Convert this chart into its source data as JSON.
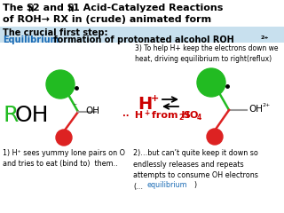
{
  "bg_color": "#ffffff",
  "subtitle_bg": "#c8e0ee",
  "title1_parts": [
    "The S",
    "N",
    "2 and S",
    "N",
    "1 Acid-Catalyzed Reactions"
  ],
  "title2": "of ROH→ RX in (crude) animated form",
  "sub_bold": "The crucial first step:",
  "sub_blue": "Equilibrium",
  "sub_rest": " formation of protonated alcohol ROH",
  "sub_sup": "2+",
  "note3": "3) To help H+ keep the electrons down we\nheat, driving equilibrium to right(reflux)",
  "note1": "1) H⁺ sees yummy lone pairs on O\nand tries to eat (bind to)  them..",
  "note2a": "2)…but can’t quite keep it down so\nendlessly releases and repeats\nattempts to consume OH electrons\n(…",
  "note2_eq": "equilibrium",
  "note2_end": ")",
  "green": "#22bb22",
  "red": "#dd2222",
  "hplus_color": "#cc0000",
  "blue": "#1a6bb5",
  "black": "#000000"
}
